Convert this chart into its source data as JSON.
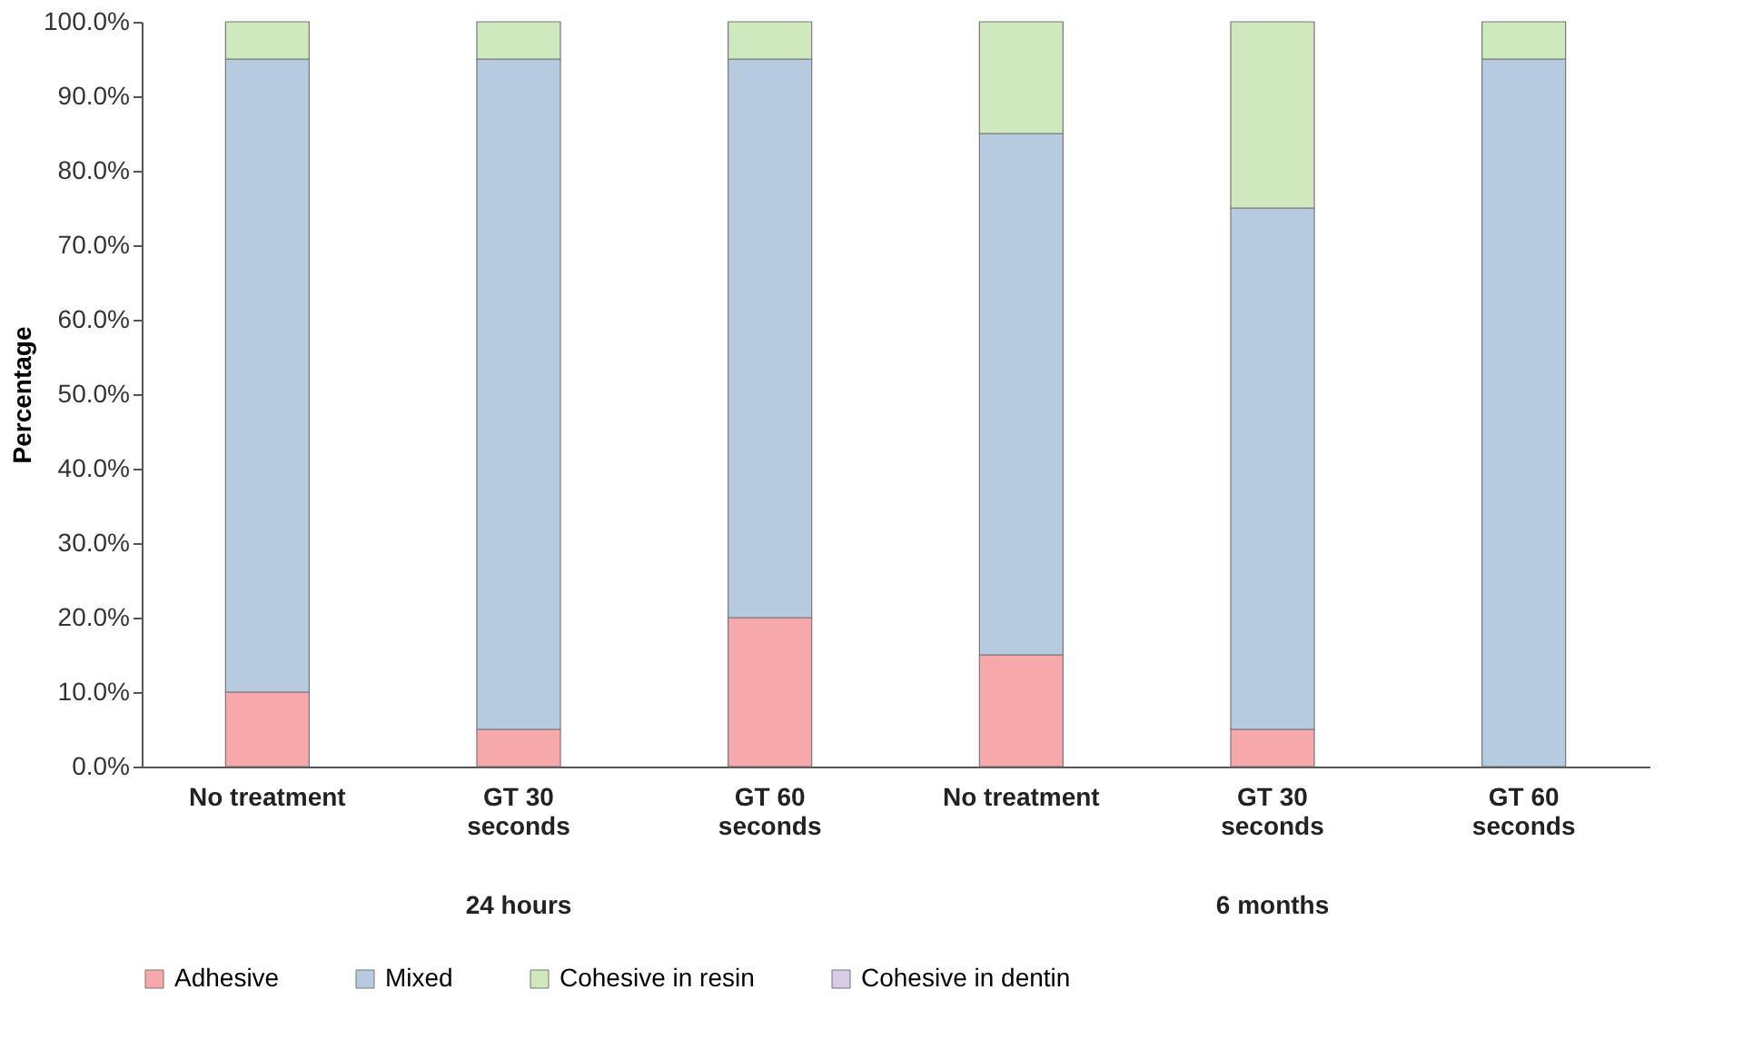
{
  "chart_data": {
    "type": "bar",
    "stacked": true,
    "ylabel": "Percentage",
    "categories": [
      "No treatment",
      "GT 30 seconds",
      "GT 60 seconds",
      "No treatment",
      "GT 30 seconds",
      "GT 60 seconds"
    ],
    "series": [
      {
        "name": "Adhesive",
        "color": "#f7a8aa",
        "values": [
          10,
          5,
          20,
          15,
          5,
          0
        ]
      },
      {
        "name": "Mixed",
        "color": "#b7cbe0",
        "values": [
          85,
          90,
          75,
          70,
          70,
          95
        ]
      },
      {
        "name": "Cohesive in resin",
        "color": "#cfe8bd",
        "values": [
          5,
          5,
          5,
          15,
          25,
          5
        ]
      },
      {
        "name": "Cohesive in dentin",
        "color": "#d8cbe8",
        "values": [
          0,
          0,
          0,
          0,
          0,
          0
        ]
      }
    ],
    "ylim": [
      0,
      100
    ],
    "yticks": [
      {
        "value": 0,
        "label": "0.0%"
      },
      {
        "value": 10,
        "label": "10.0%"
      },
      {
        "value": 20,
        "label": "20.0%"
      },
      {
        "value": 30,
        "label": "30.0%"
      },
      {
        "value": 40,
        "label": "40.0%"
      },
      {
        "value": 50,
        "label": "50.0%"
      },
      {
        "value": 60,
        "label": "60.0%"
      },
      {
        "value": 70,
        "label": "70.0%"
      },
      {
        "value": 80,
        "label": "80.0%"
      },
      {
        "value": 90,
        "label": "90.0%"
      },
      {
        "value": 100,
        "label": "100.0%"
      }
    ],
    "annotations": [
      "24 hours",
      "6 months"
    ],
    "grid": false,
    "legend": "bottom"
  }
}
